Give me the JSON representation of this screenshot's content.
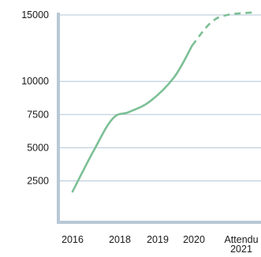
{
  "chart_data": {
    "type": "line",
    "title": "",
    "xlabel": "",
    "ylabel": "",
    "ylim": [
      0,
      15000
    ],
    "y_ticks": [
      {
        "value": 2500,
        "label": "2500"
      },
      {
        "value": 5000,
        "label": "5000"
      },
      {
        "value": 7500,
        "label": "7500"
      },
      {
        "value": 10000,
        "label": "10000"
      },
      {
        "value": 15000,
        "label": "15000"
      }
    ],
    "x_ticks": [
      {
        "x": 2016,
        "label": "2016"
      },
      {
        "x": 2018,
        "label": "2018"
      },
      {
        "x": 2019,
        "label": "2019"
      },
      {
        "x": 2020,
        "label": "2020"
      },
      {
        "x": 2021,
        "label": "Attendu\n2021",
        "lines": [
          "Attendu",
          "2021"
        ]
      }
    ],
    "xlim": [
      2015.8,
      2021.8
    ],
    "grid": true,
    "series": [
      {
        "style": "solid",
        "color": "#7cbf96",
        "points": [
          [
            2016,
            1700
          ],
          [
            2016.9,
            4800
          ],
          [
            2017.7,
            7200
          ],
          [
            2018.25,
            7700
          ],
          [
            2018.8,
            8500
          ],
          [
            2019.45,
            10300
          ],
          [
            2019.95,
            12700
          ]
        ]
      },
      {
        "style": "dashed",
        "color": "#7cbf96",
        "points": [
          [
            2019.95,
            12700
          ],
          [
            2020.35,
            14400
          ],
          [
            2020.7,
            15000
          ],
          [
            2021.3,
            15200
          ]
        ]
      }
    ]
  }
}
